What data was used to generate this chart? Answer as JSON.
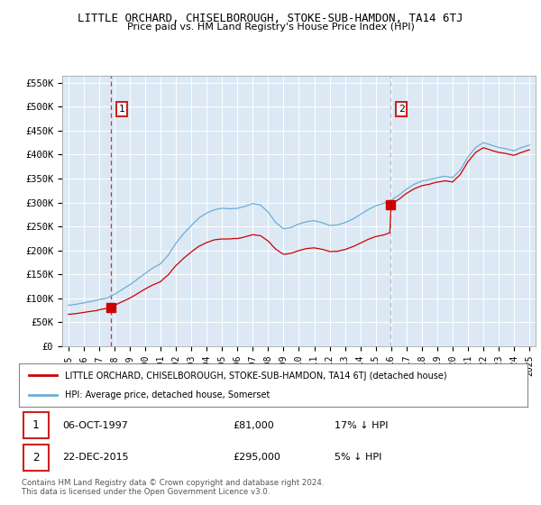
{
  "title": "LITTLE ORCHARD, CHISELBOROUGH, STOKE-SUB-HAMDON, TA14 6TJ",
  "subtitle": "Price paid vs. HM Land Registry's House Price Index (HPI)",
  "ylabel_ticks": [
    "£0",
    "£50K",
    "£100K",
    "£150K",
    "£200K",
    "£250K",
    "£300K",
    "£350K",
    "£400K",
    "£450K",
    "£500K",
    "£550K"
  ],
  "ytick_values": [
    0,
    50000,
    100000,
    150000,
    200000,
    250000,
    300000,
    350000,
    400000,
    450000,
    500000,
    550000
  ],
  "ylim": [
    0,
    570000
  ],
  "purchase1": {
    "date": 1997.78,
    "price": 81000,
    "label": "1"
  },
  "purchase2": {
    "date": 2015.97,
    "price": 295000,
    "label": "2"
  },
  "legend_line1": "LITTLE ORCHARD, CHISELBOROUGH, STOKE-SUB-HAMDON, TA14 6TJ (detached house)",
  "legend_line2": "HPI: Average price, detached house, Somerset",
  "hpi_color": "#6baed6",
  "price_color": "#cc0000",
  "background_color": "#ffffff",
  "plot_bg_color": "#dce9f5",
  "grid_color": "#ffffff",
  "footnote": "Contains HM Land Registry data © Crown copyright and database right 2024.\nThis data is licensed under the Open Government Licence v3.0."
}
